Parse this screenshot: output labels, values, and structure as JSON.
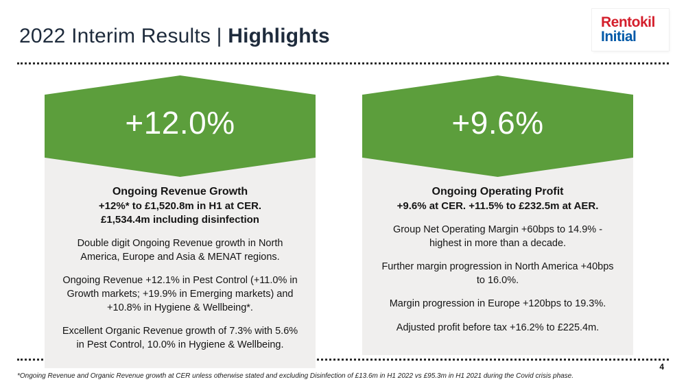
{
  "header": {
    "title_regular": "2022 Interim Results | ",
    "title_bold": "Highlights"
  },
  "logo": {
    "line1": "Rentokil",
    "line2": "Initial"
  },
  "colors": {
    "chevron_green": "#5c9e3c",
    "logo_red": "#d41f2c",
    "logo_blue": "#0059a8",
    "card_background": "#f0efee"
  },
  "cards": [
    {
      "stat": "+12.0%",
      "heading": "Ongoing Revenue Growth",
      "sublines": [
        "+12%* to £1,520.8m in H1 at CER.",
        "£1,534.4m including disinfection"
      ],
      "paragraphs": [
        "Double digit Ongoing Revenue growth in North America, Europe and Asia & MENAT regions.",
        "Ongoing Revenue +12.1% in Pest Control (+11.0% in Growth markets; +19.9% in Emerging markets) and +10.8% in Hygiene & Wellbeing*.",
        "Excellent Organic Revenue growth of 7.3% with 5.6% in Pest Control, 10.0% in Hygiene & Wellbeing."
      ]
    },
    {
      "stat": "+9.6%",
      "heading": "Ongoing Operating Profit",
      "sublines": [
        "+9.6% at CER. +11.5% to £232.5m at AER."
      ],
      "paragraphs": [
        "Group Net Operating Margin +60bps to 14.9% - highest in more than a decade.",
        "Further margin progression in North America +40bps to 16.0%.",
        "Margin progression in Europe +120bps to 19.3%.",
        "Adjusted profit before tax +16.2% to £225.4m."
      ]
    }
  ],
  "footer": {
    "page_number": "4",
    "footnote": "*Ongoing Revenue and Organic Revenue growth at CER unless otherwise stated and excluding Disinfection of £13.6m in H1 2022 vs £95.3m in H1 2021 during the Covid crisis phase."
  }
}
